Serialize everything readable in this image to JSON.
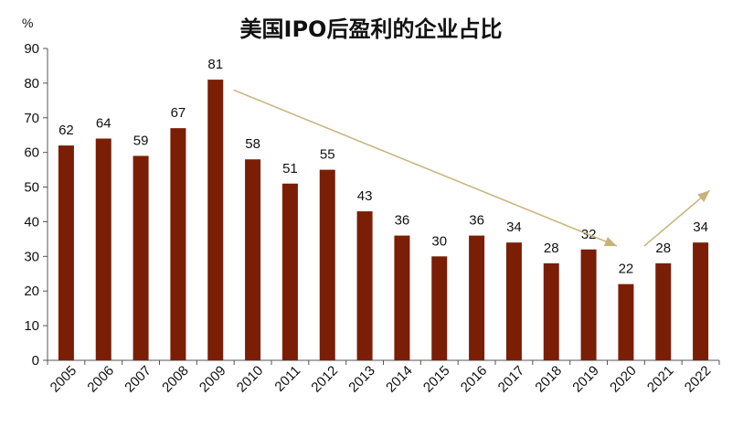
{
  "chart_data": {
    "type": "bar",
    "title": "美国IPO后盈利的企业占比",
    "y_unit": "%",
    "xlabel": "",
    "ylabel": "",
    "categories": [
      "2005",
      "2006",
      "2007",
      "2008",
      "2009",
      "2010",
      "2011",
      "2012",
      "2013",
      "2014",
      "2015",
      "2016",
      "2017",
      "2018",
      "2019",
      "2020",
      "2021",
      "2022"
    ],
    "values": [
      62,
      64,
      59,
      67,
      81,
      58,
      51,
      55,
      43,
      36,
      30,
      36,
      34,
      28,
      32,
      22,
      28,
      34
    ],
    "ylim": [
      0,
      90
    ],
    "yticks": [
      0,
      10,
      20,
      30,
      40,
      50,
      60,
      70,
      80,
      90
    ],
    "grid": false,
    "legend": "none",
    "bar_color": "#7a1e06",
    "arrow_color": "#c8b27c",
    "trend_arrows": [
      {
        "from": {
          "x": "2009",
          "y": 78
        },
        "to": {
          "x": "2020",
          "y": 33
        }
      },
      {
        "from": {
          "x": "2020",
          "y": 33
        },
        "to": {
          "x": "2022",
          "y": 49
        }
      }
    ]
  }
}
